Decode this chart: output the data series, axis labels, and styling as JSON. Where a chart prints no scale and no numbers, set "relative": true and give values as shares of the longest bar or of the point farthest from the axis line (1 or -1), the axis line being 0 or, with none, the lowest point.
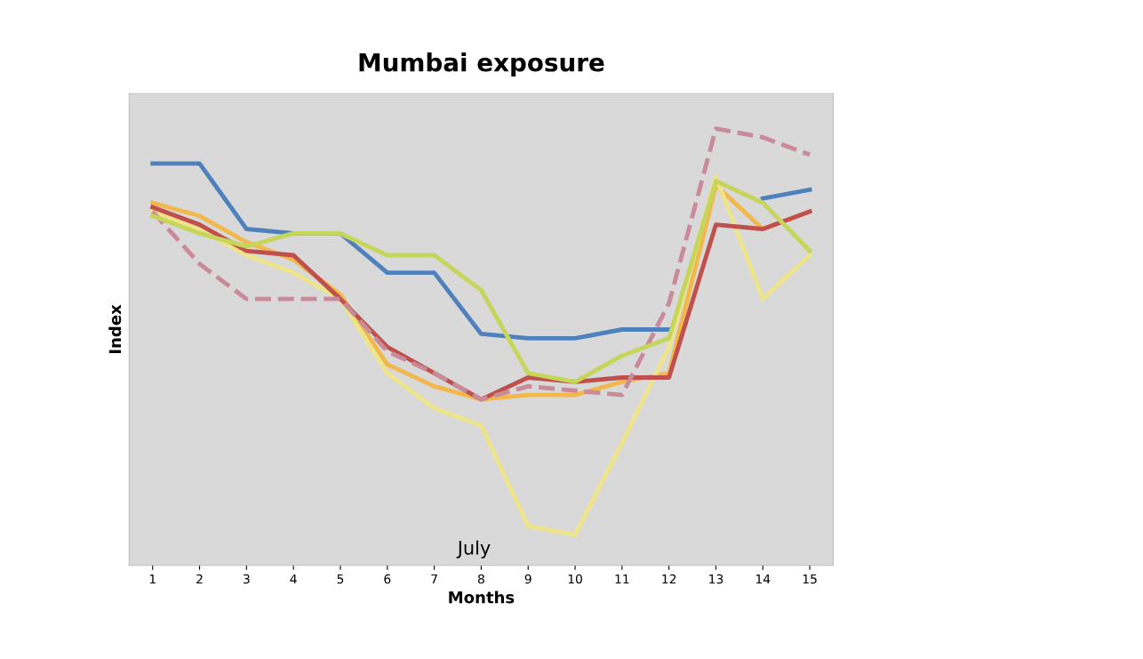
{
  "chart_data": {
    "type": "line",
    "title": "Mumbai exposure",
    "xlabel": "Months",
    "ylabel": "Index",
    "relative": true,
    "tick_labels": "x",
    "grid": false,
    "marker": "none",
    "categories": [
      "1",
      "2",
      "3",
      "4",
      "5",
      "6",
      "7",
      "8",
      "9",
      "10",
      "11",
      "12",
      "13",
      "14",
      "15"
    ],
    "annotations": [
      "July"
    ],
    "series": [
      {
        "color": "#4f81bd",
        "line_style": "solid",
        "values": [
          0.92,
          0.92,
          0.77,
          0.76,
          0.76,
          0.67,
          0.67,
          0.53,
          0.52,
          0.52,
          0.54,
          0.54,
          null,
          0.84,
          0.86
        ]
      },
      {
        "color": "#f2b84b",
        "line_style": "solid",
        "values": [
          0.83,
          0.8,
          0.74,
          0.7,
          0.62,
          0.46,
          0.41,
          0.38,
          0.39,
          0.39,
          0.42,
          0.44,
          0.87,
          0.77,
          0.81
        ]
      },
      {
        "color": "#eee58a",
        "line_style": "solid",
        "values": [
          0.81,
          0.77,
          0.71,
          0.67,
          0.61,
          0.44,
          0.36,
          0.32,
          0.09,
          0.07,
          0.28,
          0.5,
          0.89,
          0.61,
          0.71
        ]
      },
      {
        "color": "#c0504d",
        "line_style": "solid",
        "values": [
          0.82,
          0.78,
          0.72,
          0.71,
          0.61,
          0.5,
          0.44,
          0.38,
          0.43,
          0.42,
          0.43,
          0.43,
          0.78,
          0.77,
          0.81
        ]
      },
      {
        "color": "#c98a9a",
        "line_style": "dashed",
        "values": [
          0.81,
          0.69,
          0.61,
          0.61,
          0.61,
          0.49,
          0.44,
          0.38,
          0.41,
          0.4,
          0.39,
          0.6,
          1.0,
          0.98,
          0.94
        ]
      },
      {
        "color": "#c5d65a",
        "line_style": "solid",
        "values": [
          0.8,
          0.76,
          0.73,
          0.76,
          0.76,
          0.71,
          0.71,
          0.63,
          0.44,
          0.42,
          0.48,
          0.52,
          0.88,
          0.83,
          0.72
        ]
      }
    ]
  }
}
